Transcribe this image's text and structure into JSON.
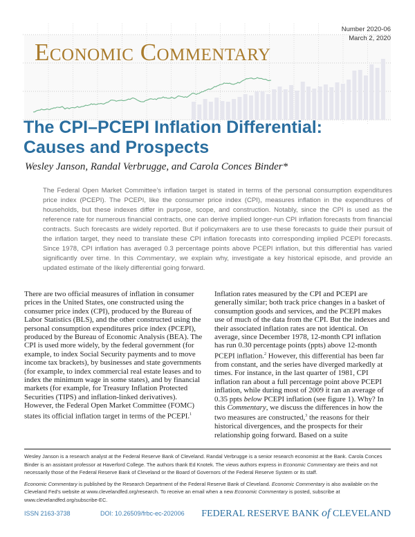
{
  "masthead": {
    "title": "Economic Commentary",
    "number": "Number 2020-06",
    "date": "March 2, 2020",
    "colors": {
      "gold": "#a97b2c",
      "green": "#6fb48a",
      "bars": "#e6e6ee"
    }
  },
  "article": {
    "title_line1": "The CPI–PCEPI Inflation Differential:",
    "title_line2": "Causes and Prospects",
    "authors": "Wesley Janson, Randal Verbrugge, and Carola Conces Binder*",
    "abstract": "The Federal Open Market Committee’s inflation target is stated in terms of the personal consumption expenditures price index (PCEPI). The PCEPI, like the consumer price index (CPI), measures inflation in the expenditures of households, but these indexes differ in purpose, scope, and construction. Notably, since the CPI is used as the reference rate for numerous financial contracts, one can derive implied longer-run CPI inflation forecasts from financial contracts. Such forecasts are widely reported. But if policymakers are to use these forecasts to guide their pursuit of the inflation target, they need to translate these CPI inflation forecasts into corresponding implied PCEPI forecasts. Since 1978, CPI inflation has averaged 0.3 percentage points above PCEPI inflation, but this differential has varied significantly over time. In this ",
    "abstract_italic": "Commentary",
    "abstract_end": ", we explain why, investigate a key historical episode, and provide an updated estimate of the likely differential going forward.",
    "col_left": "There are two official measures of inflation in consumer prices in the United States, one constructed using the consumer price index (CPI), produced by the Bureau of Labor Statistics (BLS), and the other constructed using the personal consumption expenditures price index (PCEPI), produced by the Bureau of Economic Analysis (BEA). The CPI is used more widely, by the federal government (for example, to index Social Security payments and to move income tax brackets), by businesses and state governments (for example, to index commercial real estate leases and to index the minimum wage in some states), and by financial markets (for example, for Treasury Inflation Protected Securities (TIPS) and inflation-linked derivatives). However, the Federal Open Market Committee (FOMC) states its official inflation target in terms of the PCEPI.",
    "fn1": "1",
    "col_right_a": "Inflation rates measured by the CPI and PCEPI are generally similar; both track price changes in a basket of consumption goods and services, and the PCEPI makes use of much of the data from the CPI. But the indexes and their associated inflation rates are not identical. On average, since December 1978, 12-month CPI inflation has run 0.30 percentage points (ppts) above 12-month PCEPI inflation.",
    "fn2": "2",
    "col_right_b": " However, this differential has been far from constant, and the series have diverged markedly at times. For instance, in the last quarter of 1981, CPI inflation ran about a full percentage point above PCEPI inflation, while during most of 2009 it ran an average of 0.35 ppts ",
    "below": "below",
    "col_right_c": " PCEPI inflation (see figure 1). Why? In this ",
    "commentary": "Commentary",
    "col_right_d": ", we discuss the differences in how the two measures are constructed,",
    "fn3": "3",
    "col_right_e": " the reasons for their historical divergences, and the prospects for their relationship going forward. Based on a suite"
  },
  "footer": {
    "note1": "Wesley Janson is a research analyst at the Federal Reserve Bank of Cleveland. Randal Verbrugge is a senior research economist at the Bank. Carola Conces Binder is an assistant professor at Haverford College. The authors thank Ed Knotek. The views authors express in ",
    "note1_italic": "Economic Commentary",
    "note1_end": " are theirs and not necessarily those of the Federal Reserve Bank of Cleveland or the Board of Governors of the Federal Reserve System or its staff.",
    "note2_italic_a": "Economic Commentary",
    "note2_a": " is published by the Research Department of the Federal Reserve Bank of Cleveland. ",
    "note2_italic_b": "Economic Commentary",
    "note2_b": " is also available on the Cleveland Fed’s website at www.clevelandfed.org/research. To receive an email when a new ",
    "note2_italic_c": "Economic Commentary",
    "note2_c": " is posted, subscribe at www.clevelandfed.org/subscribe-EC.",
    "issn": "ISSN 2163-3738",
    "doi": "DOI: 10.26509/frbc-ec-202006",
    "logo_a": "FEDERAL RESERVE BANK ",
    "logo_of": "of",
    "logo_b": " CLEVELAND"
  }
}
